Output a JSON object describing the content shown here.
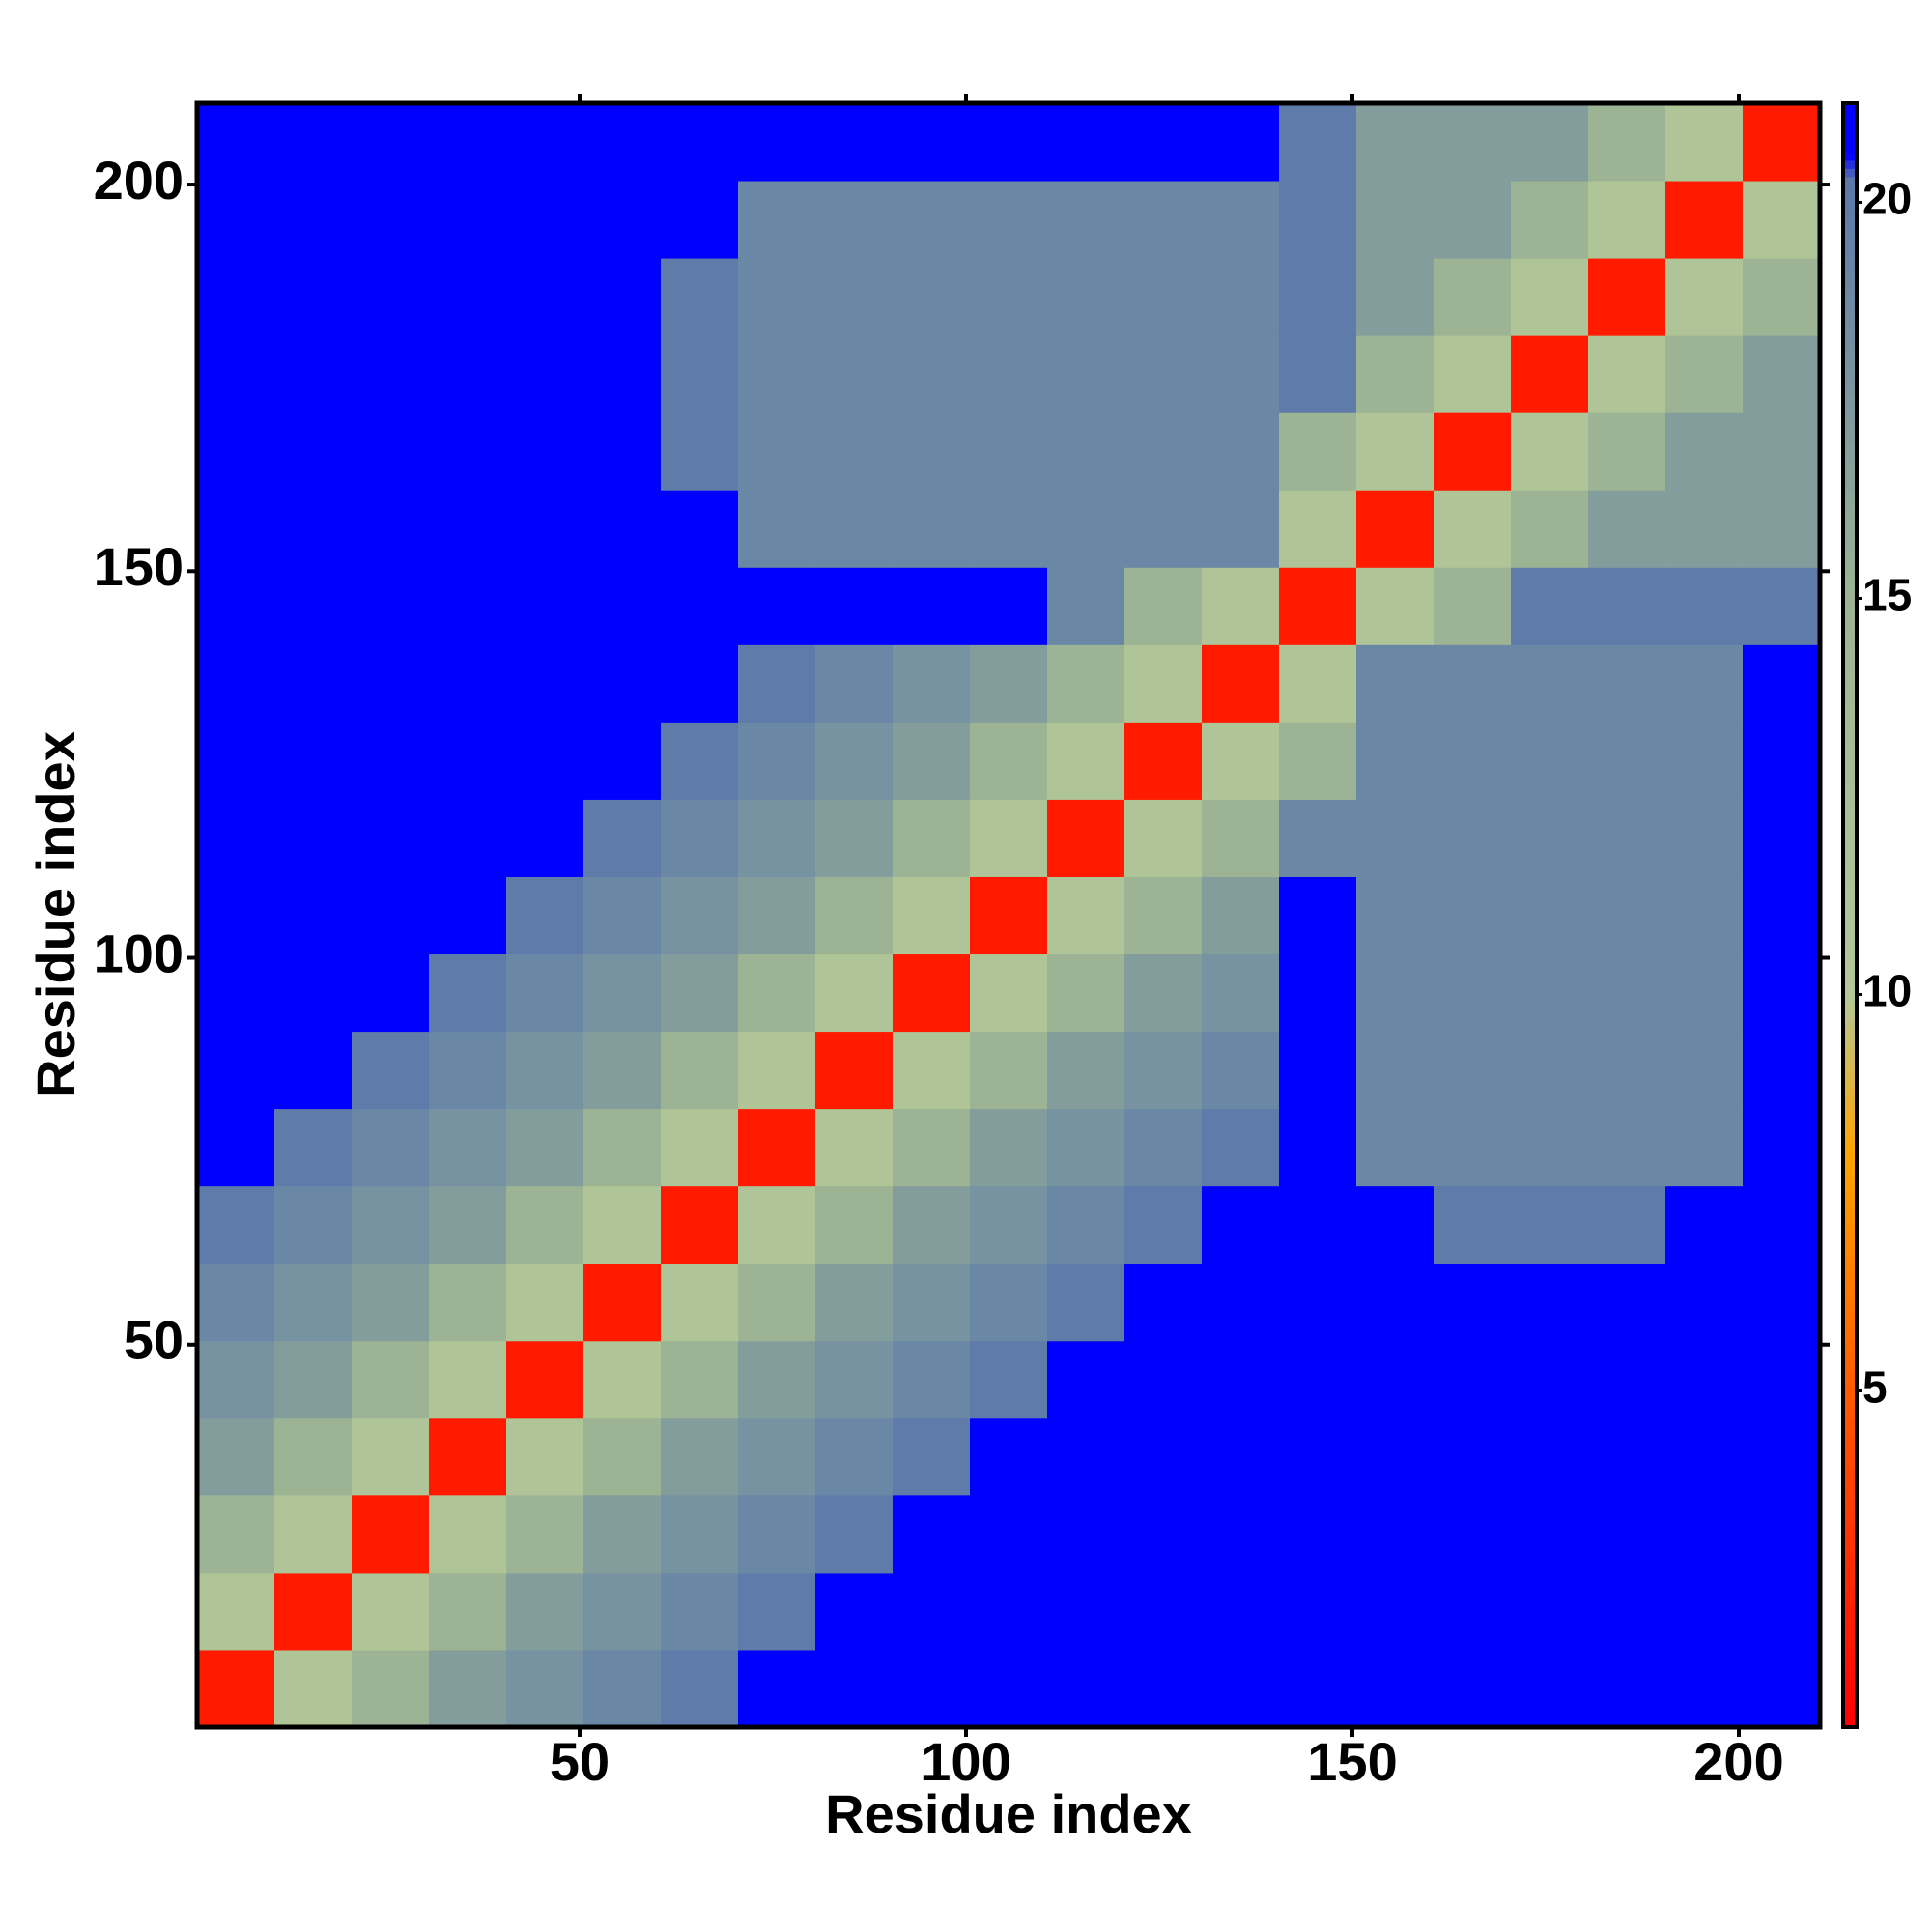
{
  "chart_data": {
    "type": "heatmap",
    "x_label": "Residue index",
    "y_label": "Residue index",
    "xbins": [
      0.5,
      10.5,
      20.5,
      30.5,
      40.5,
      50.5,
      60.5,
      70.5,
      80.5,
      90.5,
      100.5,
      110.5,
      120.5,
      130.5,
      140.5,
      150.5,
      160.5,
      170.5,
      180.5,
      190.5,
      200.5,
      210.5
    ],
    "ybins": [
      0.5,
      10.5,
      20.5,
      30.5,
      40.5,
      50.5,
      60.5,
      70.5,
      80.5,
      90.5,
      100.5,
      110.5,
      120.5,
      130.5,
      140.5,
      150.5,
      160.5,
      170.5,
      180.5,
      190.5,
      200.5,
      210.5
    ],
    "xlim": [
      0.5,
      210.5
    ],
    "ylim": [
      0.5,
      210.5
    ],
    "xticks": [
      50,
      100,
      150,
      200
    ],
    "yticks": [
      50,
      100,
      150,
      200
    ],
    "zlim": [
      0.75,
      21.25
    ],
    "colorbar_ticks": [
      5,
      10,
      15,
      20
    ],
    "colorscale": [
      {
        "value": 0.75,
        "color": "#ff0000"
      },
      {
        "value": 5,
        "color": "#ff5a00"
      },
      {
        "value": 8,
        "color": "#ffa500"
      },
      {
        "value": 10,
        "color": "#b4c898"
      },
      {
        "value": 15,
        "color": "#9cb494"
      },
      {
        "value": 20.3,
        "color": "#5a78aa"
      },
      {
        "value": 20.6,
        "color": "#0000ff"
      },
      {
        "value": 21.25,
        "color": "#0000ff"
      }
    ],
    "z": [
      [
        2,
        11,
        15,
        17,
        18,
        19,
        20,
        21,
        21,
        21,
        21,
        21,
        21,
        21,
        21,
        21,
        21,
        21,
        21,
        21,
        21
      ],
      [
        11,
        2,
        11,
        15,
        17,
        18,
        19,
        20,
        21,
        21,
        21,
        21,
        21,
        21,
        21,
        21,
        21,
        21,
        21,
        21,
        21
      ],
      [
        15,
        11,
        2,
        11,
        15,
        17,
        18,
        19,
        20,
        21,
        21,
        21,
        21,
        21,
        21,
        21,
        21,
        21,
        21,
        21,
        21
      ],
      [
        17,
        15,
        11,
        2,
        11,
        15,
        17,
        18,
        19,
        20,
        21,
        21,
        21,
        21,
        21,
        21,
        21,
        21,
        21,
        21,
        21
      ],
      [
        18,
        17,
        15,
        11,
        2,
        11,
        15,
        17,
        18,
        19,
        20,
        21,
        21,
        21,
        21,
        21,
        21,
        21,
        21,
        21,
        21
      ],
      [
        19,
        18,
        17,
        15,
        11,
        2,
        11,
        15,
        17,
        18,
        19,
        20,
        21,
        21,
        21,
        21,
        21,
        21,
        21,
        21,
        21
      ],
      [
        20,
        19,
        18,
        17,
        15,
        11,
        2,
        11,
        15,
        17,
        18,
        19,
        20,
        21,
        21,
        21,
        20,
        20,
        20,
        21,
        21
      ],
      [
        21,
        20,
        19,
        18,
        17,
        15,
        11,
        2,
        11,
        15,
        17,
        18,
        19,
        20,
        21,
        19,
        19,
        19,
        19,
        19,
        21
      ],
      [
        21,
        21,
        20,
        19,
        18,
        17,
        15,
        11,
        2,
        11,
        15,
        17,
        18,
        19,
        21,
        19,
        19,
        19,
        19,
        19,
        21
      ],
      [
        21,
        21,
        21,
        20,
        19,
        18,
        17,
        15,
        11,
        2,
        11,
        15,
        17,
        18,
        21,
        19,
        19,
        19,
        19,
        19,
        21
      ],
      [
        21,
        21,
        21,
        21,
        20,
        19,
        18,
        17,
        15,
        11,
        2,
        11,
        15,
        17,
        21,
        19,
        19,
        19,
        19,
        19,
        21
      ],
      [
        21,
        21,
        21,
        21,
        21,
        20,
        19,
        18,
        17,
        15,
        11,
        2,
        11,
        15,
        19,
        19,
        19,
        19,
        19,
        19,
        21
      ],
      [
        21,
        21,
        21,
        21,
        21,
        21,
        20,
        19,
        18,
        17,
        15,
        11,
        2,
        11,
        15,
        19,
        19,
        19,
        19,
        19,
        21
      ],
      [
        21,
        21,
        21,
        21,
        21,
        21,
        21,
        20,
        19,
        18,
        17,
        15,
        11,
        2,
        11,
        19,
        19,
        19,
        19,
        19,
        21
      ],
      [
        21,
        21,
        21,
        21,
        21,
        21,
        21,
        21,
        21,
        21,
        21,
        19,
        15,
        11,
        2,
        11,
        15,
        20,
        20,
        20,
        20
      ],
      [
        21,
        21,
        21,
        21,
        21,
        21,
        21,
        19,
        19,
        19,
        19,
        19,
        19,
        19,
        11,
        2,
        11,
        15,
        17,
        17,
        17
      ],
      [
        21,
        21,
        21,
        21,
        21,
        21,
        20,
        19,
        19,
        19,
        19,
        19,
        19,
        19,
        15,
        11,
        2,
        11,
        15,
        17,
        17
      ],
      [
        21,
        21,
        21,
        21,
        21,
        21,
        20,
        19,
        19,
        19,
        19,
        19,
        19,
        19,
        20,
        15,
        11,
        2,
        11,
        15,
        17
      ],
      [
        21,
        21,
        21,
        21,
        21,
        21,
        20,
        19,
        19,
        19,
        19,
        19,
        19,
        19,
        20,
        17,
        15,
        11,
        2,
        11,
        15
      ],
      [
        21,
        21,
        21,
        21,
        21,
        21,
        21,
        19,
        19,
        19,
        19,
        19,
        19,
        19,
        20,
        17,
        17,
        15,
        11,
        2,
        11
      ],
      [
        21,
        21,
        21,
        21,
        21,
        21,
        21,
        21,
        21,
        21,
        21,
        21,
        21,
        21,
        20,
        17,
        17,
        17,
        15,
        11,
        2
      ]
    ]
  }
}
